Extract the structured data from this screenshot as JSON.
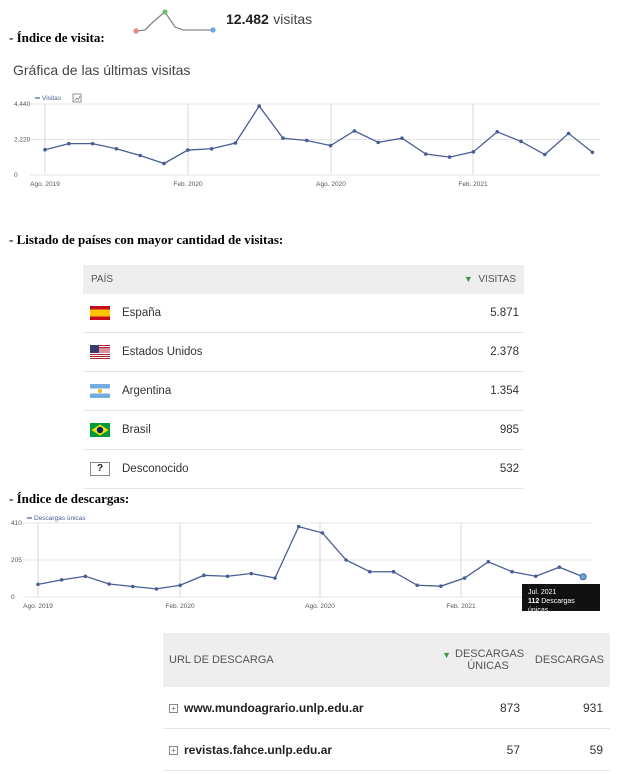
{
  "summary": {
    "label": "- Índice de visita:",
    "total": "12.482",
    "suffix": "visitas"
  },
  "visits_chart_title": "Gráfica de las últimas visitas",
  "countries_label": "- Listado de países con mayor cantidad de visitas:",
  "countries_table": {
    "col_country": "PAÍS",
    "col_visits": "VISITAS",
    "rows": [
      {
        "country": "España",
        "flag": "flag-spain-icon",
        "visits": "5.871"
      },
      {
        "country": "Estados Unidos",
        "flag": "flag-usa-icon",
        "visits": "2.378"
      },
      {
        "country": "Argentina",
        "flag": "flag-argentina-icon",
        "visits": "1.354"
      },
      {
        "country": "Brasil",
        "flag": "flag-brazil-icon",
        "visits": "985"
      },
      {
        "country": "Desconocido",
        "flag": "unknown-flag-icon",
        "unknown_symbol": "?",
        "visits": "532"
      }
    ]
  },
  "downloads_label": "- Índice de descargas:",
  "downloads_table": {
    "col_url": "URL DE DESCARGA",
    "col_unique": "DESCARGAS ÚNICAS",
    "col_total": "DESCARGAS",
    "expand_symbol": "+",
    "rows": [
      {
        "url": "www.mundoagrario.unlp.edu.ar",
        "unique": "873",
        "total": "931"
      },
      {
        "url": "revistas.fahce.unlp.edu.ar",
        "unique": "57",
        "total": "59"
      }
    ]
  },
  "tooltip": {
    "date": "Jul. 2021",
    "value": "112",
    "label": "Descargas únicas"
  },
  "colors": {
    "line": "#4a5e96",
    "sparkline": "#888888",
    "spark_start": "#e88888",
    "spark_max": "#6ec26e",
    "spark_end": "#6aa6e0",
    "sort_arrow": "#3a9a4a"
  },
  "chart_data": [
    {
      "type": "line",
      "series": [
        {
          "name": "Visitas",
          "values": [
            1580,
            1960,
            1960,
            1640,
            1220,
            720,
            1560,
            1640,
            2000,
            4310,
            2300,
            2160,
            1840,
            2760,
            2040,
            2300,
            1310,
            1120,
            1450,
            2700,
            2100,
            1280,
            2600,
            1420
          ]
        }
      ],
      "x_tick_labels": [
        "Ago. 2019",
        "Feb. 2020",
        "Ago. 2020",
        "Feb. 2021"
      ],
      "y_tick_labels": [
        "4.440",
        "2.220",
        "0"
      ],
      "ylim": [
        0,
        4440
      ],
      "legend": "top-left",
      "grid": true
    },
    {
      "type": "line",
      "series": [
        {
          "name": "Descargas únicas",
          "values": [
            70,
            95,
            115,
            72,
            58,
            45,
            65,
            120,
            115,
            130,
            105,
            390,
            355,
            205,
            140,
            140,
            65,
            60,
            105,
            195,
            140,
            115,
            165,
            112
          ]
        }
      ],
      "x_tick_labels": [
        "Ago. 2019",
        "Feb. 2020",
        "Ago. 2020",
        "Feb. 2021"
      ],
      "y_tick_labels": [
        "410",
        "205",
        "0"
      ],
      "ylim": [
        0,
        410
      ],
      "legend": "top-left",
      "grid": true
    }
  ]
}
